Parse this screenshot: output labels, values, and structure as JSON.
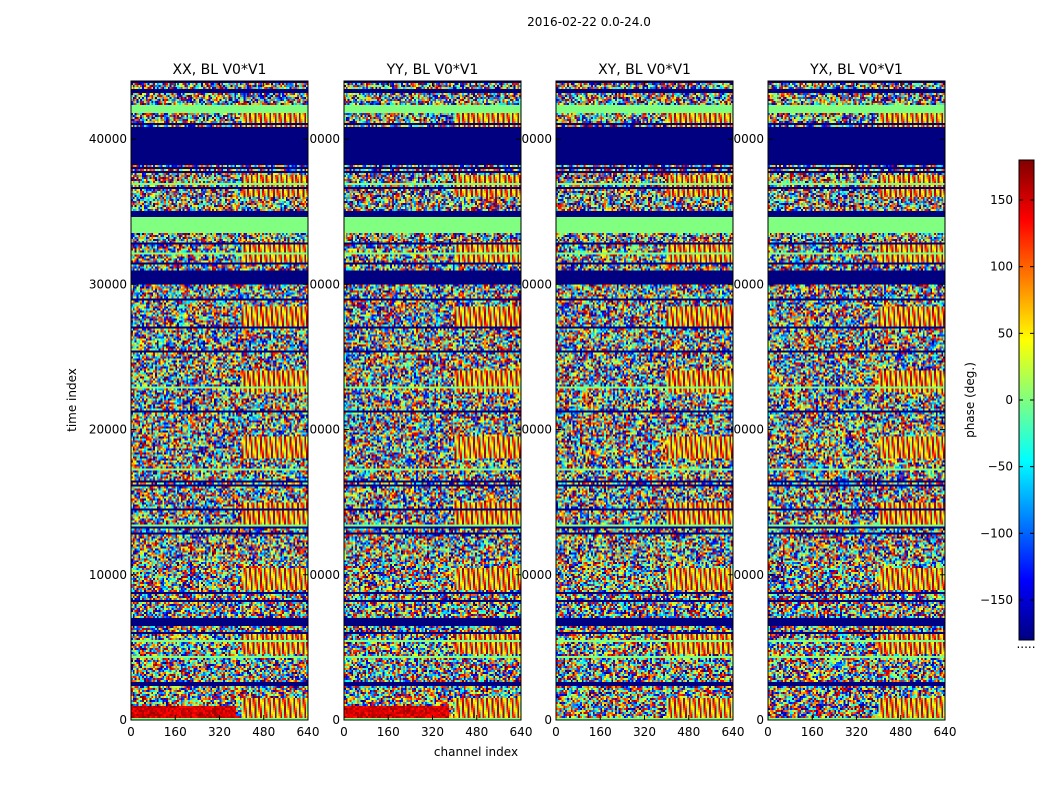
{
  "chart_data": {
    "type": "heatmap",
    "suptitle": "2016-02-22 0.0-24.0",
    "xlabel": "channel index",
    "ylabel": "time index",
    "xlim": [
      0,
      640
    ],
    "ylim": [
      0,
      44000
    ],
    "xticks": [
      0,
      160,
      320,
      480,
      640
    ],
    "yticks": [
      0,
      10000,
      20000,
      30000,
      40000
    ],
    "ytick_labels": [
      "0",
      "10000",
      "20000",
      "30000",
      "40000"
    ],
    "ytick_labels_overlapped": [
      "0",
      "0000",
      "0000",
      "0000",
      "0000"
    ],
    "colormap": "jet",
    "colorbar": {
      "label": "phase (deg.)",
      "range": [
        -180,
        180
      ],
      "ticks": [
        -150,
        -100,
        -50,
        0,
        50,
        100,
        150
      ],
      "tick_labels": [
        "−150",
        "−100",
        "−50",
        "0",
        "50",
        "100",
        "150"
      ],
      "footnote": "....."
    },
    "panels": [
      {
        "title": "XX, BL V0*V1",
        "pol": "XX"
      },
      {
        "title": "YY, BL V0*V1",
        "pol": "YY"
      },
      {
        "title": "XY, BL V0*V1",
        "pol": "XY"
      },
      {
        "title": "YX, BL V0*V1",
        "pol": "YX"
      }
    ],
    "features": {
      "flagged_bands_time": [
        [
          6500,
          7000
        ],
        [
          34700,
          35000
        ],
        [
          38200,
          40800
        ],
        [
          30000,
          31000
        ]
      ],
      "constant_bands_time": [
        [
          33500,
          34600
        ],
        [
          41800,
          42200
        ]
      ],
      "low_phase_corner": {
        "panels": [
          "XX",
          "YY"
        ],
        "time": [
          0,
          900
        ],
        "channel": [
          0,
          380
        ],
        "phase": 150
      }
    }
  }
}
